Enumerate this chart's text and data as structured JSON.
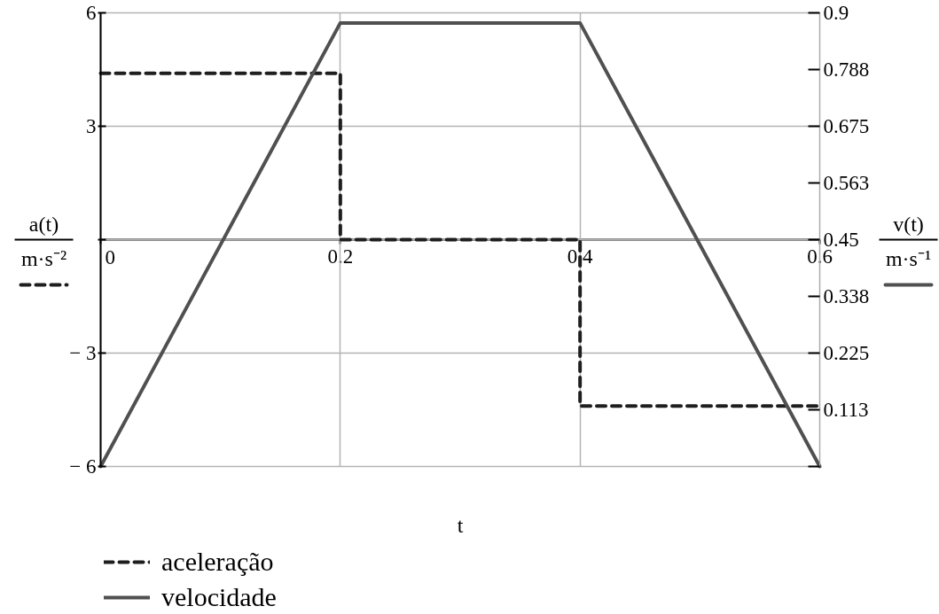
{
  "chart_data": {
    "type": "line",
    "xlabel": "t",
    "ylabel": "a(t)\nm·s⁻²",
    "y2label": "v(t)\nm·s⁻¹",
    "x": [
      0,
      0.2,
      0.2,
      0.4,
      0.4,
      0.6
    ],
    "series": [
      {
        "name": "aceleração",
        "color": "#1e1e1e",
        "line_style": "dashed",
        "values": [
          4.4,
          4.4,
          0,
          0,
          -4.4,
          -4.4
        ]
      },
      {
        "name": "velocidade",
        "color": "#505050",
        "line_style": "solid",
        "axis": "y2",
        "x": [
          0,
          0.2,
          0.4,
          0.6
        ],
        "values": [
          0,
          0.88,
          0.88,
          0
        ]
      }
    ],
    "xlim": [
      0,
      0.6
    ],
    "ylim": [
      -6,
      6
    ],
    "y2lim": [
      0,
      0.9
    ],
    "xticks": [
      0,
      0.2,
      0.4,
      0.6
    ],
    "yticks": [
      6,
      3,
      {
        "value": 0,
        "label": null
      },
      {
        "value": -3,
        "label": "− 3"
      },
      {
        "value": -6,
        "label": "− 6"
      }
    ],
    "y2ticks": [
      0.9,
      0.788,
      0.675,
      0.563,
      0.45,
      0.338,
      0.225,
      0.113,
      {
        "value": 0,
        "label": null
      }
    ],
    "grid": true,
    "legend": "bottom left"
  }
}
